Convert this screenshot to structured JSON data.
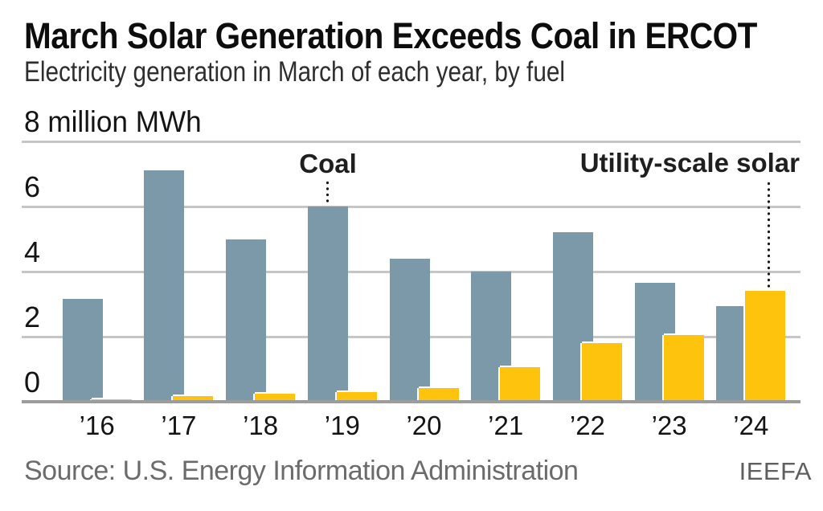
{
  "header": {
    "title": "March Solar Generation Exceeds Coal in ERCOT",
    "subtitle": "Electricity generation in March of each year, by fuel"
  },
  "footer": {
    "source": "Source: U.S. Energy Information Administration",
    "logo": "IEEFA"
  },
  "colors": {
    "coal": "#7b99a8",
    "solar": "#fec30d",
    "gridline": "#c6c6c6",
    "baseline": "#9c9c9c",
    "annotation": "#1f1f1f",
    "text": "#141414",
    "source_text": "#6b6b6b"
  },
  "chart_data": {
    "type": "bar",
    "title": "March Solar Generation Exceeds Coal in ERCOT",
    "subtitle": "Electricity generation in March of each year, by fuel",
    "unit_label": "8 million MWh",
    "xlabel": "",
    "ylabel": "million MWh",
    "categories": [
      "’16",
      "’17",
      "’18",
      "’19",
      "’20",
      "’21",
      "’22",
      "’23",
      "’24"
    ],
    "series": [
      {
        "name": "Coal",
        "color_key": "coal",
        "values": [
          3.15,
          7.1,
          5.0,
          6.0,
          4.4,
          4.0,
          5.2,
          3.65,
          2.95
        ]
      },
      {
        "name": "Utility-scale solar",
        "color_key": "solar",
        "values": [
          0.07,
          0.17,
          0.24,
          0.29,
          0.43,
          1.07,
          1.8,
          2.05,
          3.4
        ]
      }
    ],
    "ylim": [
      0,
      8
    ],
    "grid_values": [
      8,
      6,
      4,
      2
    ],
    "tick_labels": [
      6,
      4,
      2,
      0
    ],
    "grid": true,
    "legend_position": "annotations-with-dotted-leaders"
  }
}
